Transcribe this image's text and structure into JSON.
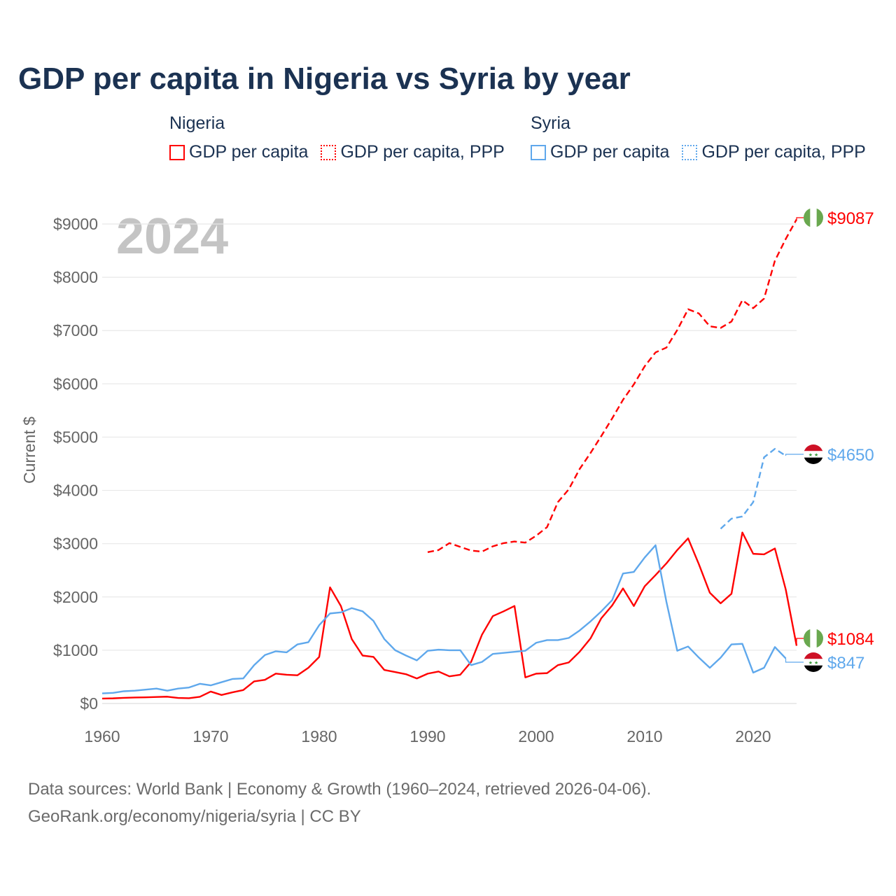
{
  "title": "GDP per capita in Nigeria vs Syria by year",
  "legend": {
    "groups": [
      {
        "name": "Nigeria",
        "items": [
          "GDP per capita",
          "GDP per capita, PPP"
        ]
      },
      {
        "name": "Syria",
        "items": [
          "GDP per capita",
          "GDP per capita, PPP"
        ]
      }
    ]
  },
  "colors": {
    "nigeria": "#ff0000",
    "syria": "#5fa8ec"
  },
  "chart_data": {
    "type": "line",
    "title": "GDP per capita in Nigeria vs Syria by year",
    "ylabel": "Current $",
    "xlabel": "",
    "year_watermark": "2024",
    "xlim": [
      1960,
      2024
    ],
    "ylim": [
      0,
      9000
    ],
    "x_ticks": [
      "1960",
      "1970",
      "1980",
      "1990",
      "2000",
      "2010",
      "2020"
    ],
    "y_ticks": [
      "$0",
      "$1000",
      "$2000",
      "$3000",
      "$4000",
      "$5000",
      "$6000",
      "$7000",
      "$8000",
      "$9000"
    ],
    "grid": true,
    "series": [
      {
        "name": "Nigeria GDP per capita",
        "color": "#ff0000",
        "dash": false,
        "start": 1960,
        "end_label": "$1084",
        "values": [
          93,
          97,
          106,
          112,
          116,
          122,
          128,
          104,
          100,
          126,
          224,
          160,
          209,
          252,
          415,
          444,
          561,
          539,
          530,
          670,
          874,
          2180,
          1830,
          1210,
          900,
          875,
          630,
          590,
          550,
          470,
          560,
          600,
          510,
          540,
          780,
          1290,
          1640,
          1730,
          1830,
          490,
          560,
          570,
          720,
          770,
          970,
          1220,
          1600,
          1840,
          2160,
          1830,
          2200,
          2410,
          2630,
          2880,
          3100,
          2610,
          2080,
          1880,
          2060,
          3210,
          2810,
          2800,
          2910,
          2140,
          1084
        ]
      },
      {
        "name": "Nigeria GDP per capita, PPP",
        "color": "#ff0000",
        "dash": true,
        "start": 1990,
        "end_label": "$9087",
        "values": [
          2840,
          2880,
          3010,
          2940,
          2870,
          2850,
          2950,
          3010,
          3040,
          3020,
          3150,
          3310,
          3780,
          4020,
          4400,
          4700,
          5020,
          5350,
          5700,
          5990,
          6330,
          6590,
          6680,
          7010,
          7400,
          7320,
          7080,
          7050,
          7170,
          7570,
          7420,
          7600,
          8310,
          8720,
          9087
        ]
      },
      {
        "name": "Syria GDP per capita",
        "color": "#5fa8ec",
        "dash": false,
        "start": 1960,
        "end_label": "$847",
        "values": [
          190,
          200,
          230,
          240,
          260,
          280,
          240,
          280,
          300,
          370,
          340,
          400,
          460,
          470,
          720,
          910,
          980,
          960,
          1110,
          1150,
          1470,
          1690,
          1710,
          1790,
          1730,
          1550,
          1210,
          1000,
          900,
          810,
          990,
          1010,
          1000,
          1000,
          720,
          780,
          930,
          950,
          970,
          990,
          1140,
          1190,
          1190,
          1230,
          1370,
          1540,
          1730,
          1940,
          2440,
          2470,
          2740,
          2970,
          1910,
          990,
          1070,
          860,
          670,
          860,
          1110,
          1120,
          580,
          670,
          1060,
          847
        ]
      },
      {
        "name": "Syria GDP per capita, PPP",
        "color": "#5fa8ec",
        "dash": true,
        "start": 2017,
        "end_label": "$4650",
        "values": [
          3280,
          3470,
          3510,
          3780,
          4620,
          4780,
          4650
        ]
      }
    ]
  },
  "footer": {
    "line1": "Data sources: World Bank | Economy & Growth (1960–2024, retrieved 2026-04-06).",
    "line2": "GeoRank.org/economy/nigeria/syria | CC BY"
  }
}
